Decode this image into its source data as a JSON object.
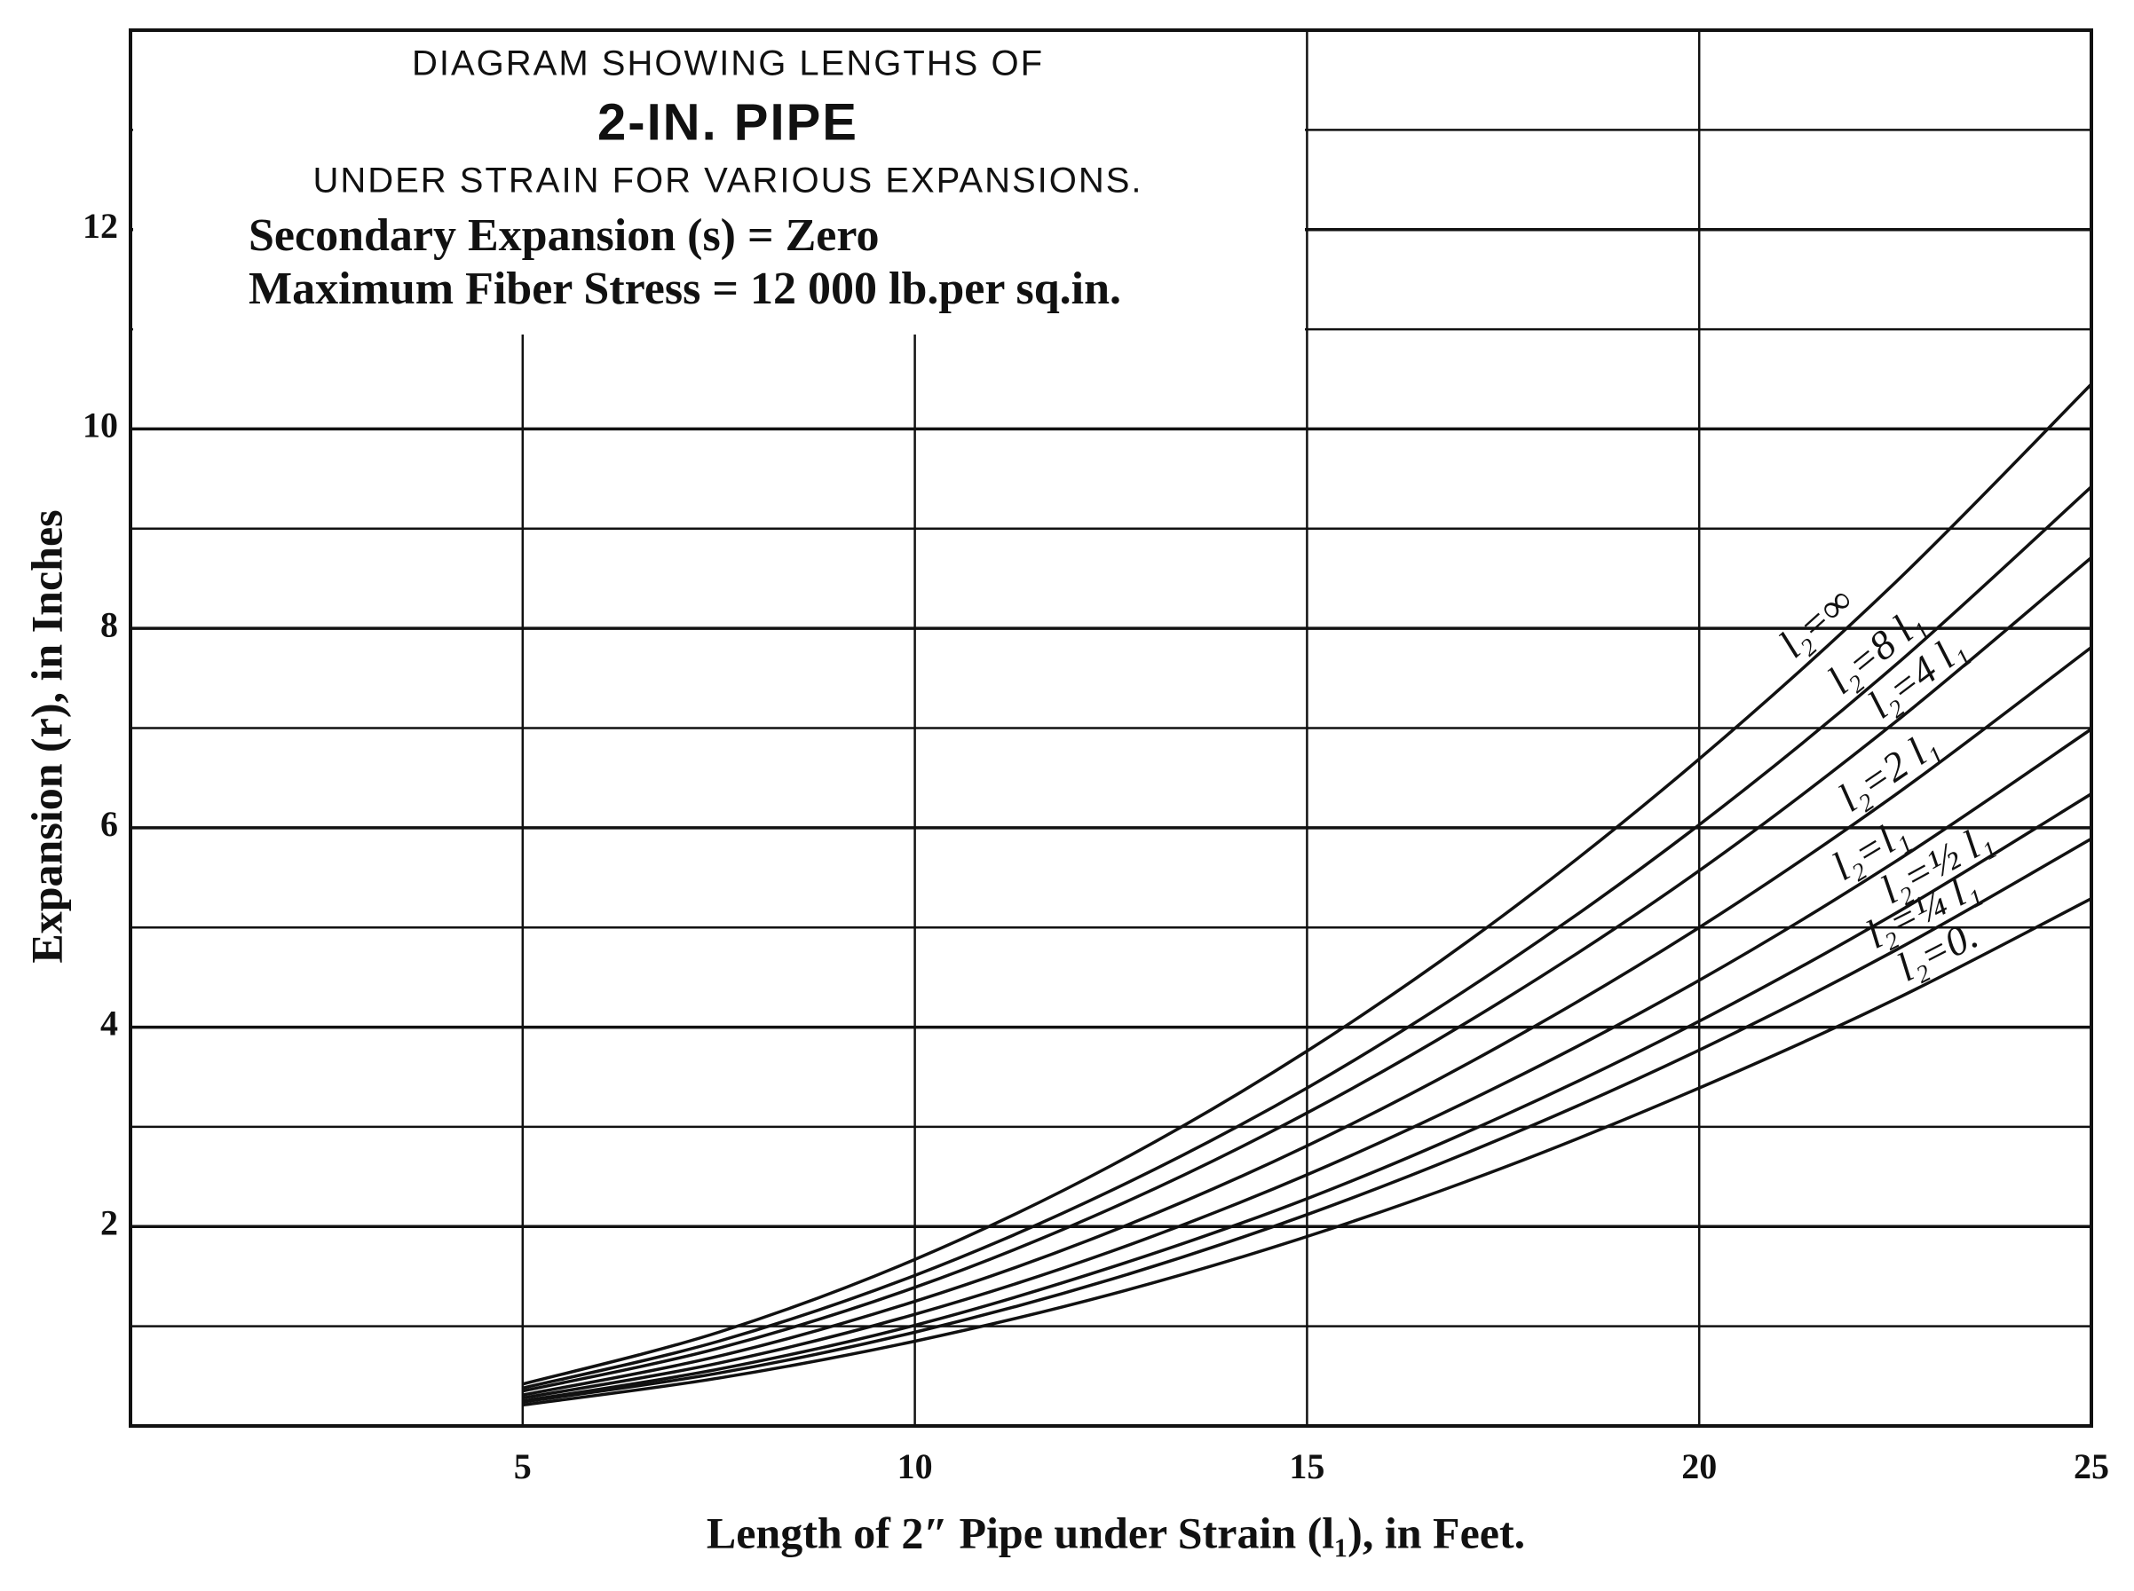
{
  "chart_data": {
    "type": "line",
    "title": "DIAGRAM SHOWING LENGTHS OF",
    "subtitle": "2-IN. PIPE",
    "subtitle_2": "UNDER STRAIN FOR VARIOUS EXPANSIONS.",
    "annotations": [
      "Secondary Expansion (s) = Zero",
      "Maximum Fiber Stress = 12 000 lb.per sq.in."
    ],
    "x_label": "Length of 2″ Pipe under Strain (l₁), in Feet.",
    "y_label": "Expansion (r), in Inches",
    "x": [
      5,
      7.5,
      10,
      12.5,
      15,
      17.5,
      20,
      22.5,
      25
    ],
    "series": [
      {
        "name": "l₂=∞",
        "color": "#111111",
        "values": [
          0.42,
          0.94,
          1.67,
          2.61,
          3.76,
          5.12,
          6.69,
          8.46,
          10.45
        ]
      },
      {
        "name": "l₂=8 l₁",
        "color": "#111111",
        "values": [
          0.38,
          0.85,
          1.51,
          2.36,
          3.39,
          4.62,
          6.03,
          7.63,
          9.42
        ]
      },
      {
        "name": "l₂=4 l₁",
        "color": "#111111",
        "values": [
          0.35,
          0.78,
          1.39,
          2.18,
          3.14,
          4.27,
          5.57,
          7.06,
          8.71
        ]
      },
      {
        "name": "l₂=2 l₁",
        "color": "#111111",
        "values": [
          0.31,
          0.7,
          1.25,
          1.95,
          2.81,
          3.83,
          5.0,
          6.33,
          7.81
        ]
      },
      {
        "name": "l₂=l₁",
        "color": "#111111",
        "values": [
          0.28,
          0.63,
          1.12,
          1.75,
          2.52,
          3.43,
          4.47,
          5.66,
          6.99
        ]
      },
      {
        "name": "l₂=½ l₁",
        "color": "#111111",
        "values": [
          0.25,
          0.57,
          1.01,
          1.59,
          2.28,
          3.11,
          4.06,
          5.14,
          6.34
        ]
      },
      {
        "name": "l₂=¼ l₁",
        "color": "#111111",
        "values": [
          0.24,
          0.53,
          0.94,
          1.47,
          2.12,
          2.89,
          3.77,
          4.77,
          5.89
        ]
      },
      {
        "name": "l₂=0.",
        "color": "#111111",
        "values": [
          0.21,
          0.48,
          0.85,
          1.32,
          1.9,
          2.59,
          3.39,
          4.28,
          5.29
        ]
      }
    ],
    "xlim": [
      0,
      25
    ],
    "ylim": [
      0,
      14
    ],
    "xticks": [
      5,
      10,
      15,
      20,
      25
    ],
    "yticks": [
      2,
      4,
      6,
      8,
      10,
      12
    ],
    "y_minor_grid": [
      1,
      3,
      5,
      7,
      9,
      11,
      13
    ],
    "grid": true
  }
}
